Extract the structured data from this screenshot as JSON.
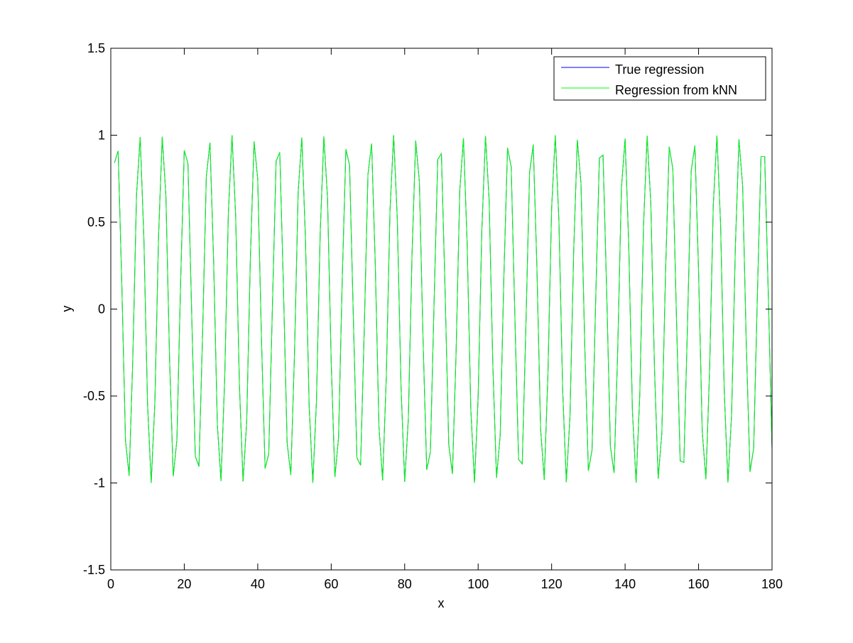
{
  "colors": {
    "background": "#ffffff",
    "axes": "#000000",
    "true_regression": "#0000ff",
    "knn_regression": "#00ff00"
  },
  "chart_data": {
    "type": "line",
    "title": "",
    "xlabel": "x",
    "ylabel": "y",
    "xlim": [
      0,
      180
    ],
    "ylim": [
      -1.5,
      1.5
    ],
    "xticks": [
      0,
      20,
      40,
      60,
      80,
      100,
      120,
      140,
      160,
      180
    ],
    "xtick_labels": [
      "0",
      "20",
      "40",
      "60",
      "80",
      "100",
      "120",
      "140",
      "160",
      "180"
    ],
    "yticks": [
      -1.5,
      -1,
      -0.5,
      0,
      0.5,
      1,
      1.5
    ],
    "ytick_labels": [
      "-1.5",
      "-1",
      "-0.5",
      "0",
      "0.5",
      "1",
      "1.5"
    ],
    "grid": false,
    "legend_position": "top-right",
    "x_sampling": {
      "start": 1,
      "end": 180,
      "step": 1
    },
    "series": [
      {
        "name": "True regression",
        "color": "#0000ff",
        "function": "sin(x)",
        "line_width": 1
      },
      {
        "name": "Regression from kNN",
        "color": "#00ff00",
        "function": "sin(x)",
        "line_width": 1
      }
    ]
  }
}
